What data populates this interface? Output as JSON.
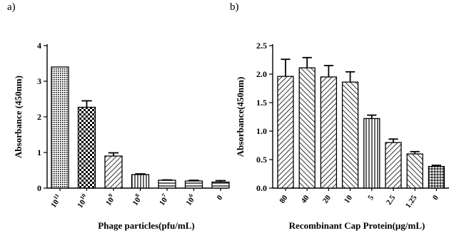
{
  "panel_labels": [
    "a)",
    "b)"
  ],
  "chart_data": [
    {
      "panel": "a)",
      "type": "bar",
      "xlabel": "Phage particles(pfu/mL)",
      "ylabel": "Absorbance (450nm)",
      "categories": [
        {
          "base": "10",
          "exp": "11"
        },
        {
          "base": "10",
          "exp": "10"
        },
        {
          "base": "10",
          "exp": "9"
        },
        {
          "base": "10",
          "exp": "8"
        },
        {
          "base": "10",
          "exp": "7"
        },
        {
          "base": "10",
          "exp": "6"
        },
        {
          "base": "0",
          "exp": ""
        }
      ],
      "values": [
        3.4,
        2.27,
        0.9,
        0.38,
        0.22,
        0.2,
        0.17
      ],
      "errors": [
        0.0,
        0.18,
        0.09,
        0.02,
        0.01,
        0.02,
        0.04
      ],
      "patterns": [
        "dots",
        "checker",
        "diag-right",
        "vertical",
        "horizontal",
        "horizontal",
        "horizontal"
      ],
      "ylim": [
        0,
        4
      ],
      "yticks": [
        "0",
        "1",
        "2",
        "3",
        "4"
      ],
      "grid": false
    },
    {
      "panel": "b)",
      "type": "bar",
      "xlabel": "Recombinant Cap Protein(µg/mL)",
      "ylabel": "Absorbance(450nm)",
      "categories": [
        "80",
        "40",
        "20",
        "10",
        "5",
        "2.5",
        "1.25",
        "0"
      ],
      "values": [
        1.96,
        2.11,
        1.95,
        1.86,
        1.22,
        0.8,
        0.6,
        0.38
      ],
      "errors": [
        0.3,
        0.18,
        0.2,
        0.18,
        0.06,
        0.06,
        0.04,
        0.02
      ],
      "patterns": [
        "diag-right",
        "diag-left",
        "diag-right",
        "diag-left",
        "vertical",
        "diag-right",
        "diag-left",
        "grid"
      ],
      "ylim": [
        0,
        2.5
      ],
      "yticks": [
        "0.0",
        "0.5",
        "1.0",
        "1.5",
        "2.0",
        "2.5"
      ],
      "grid": false
    }
  ]
}
